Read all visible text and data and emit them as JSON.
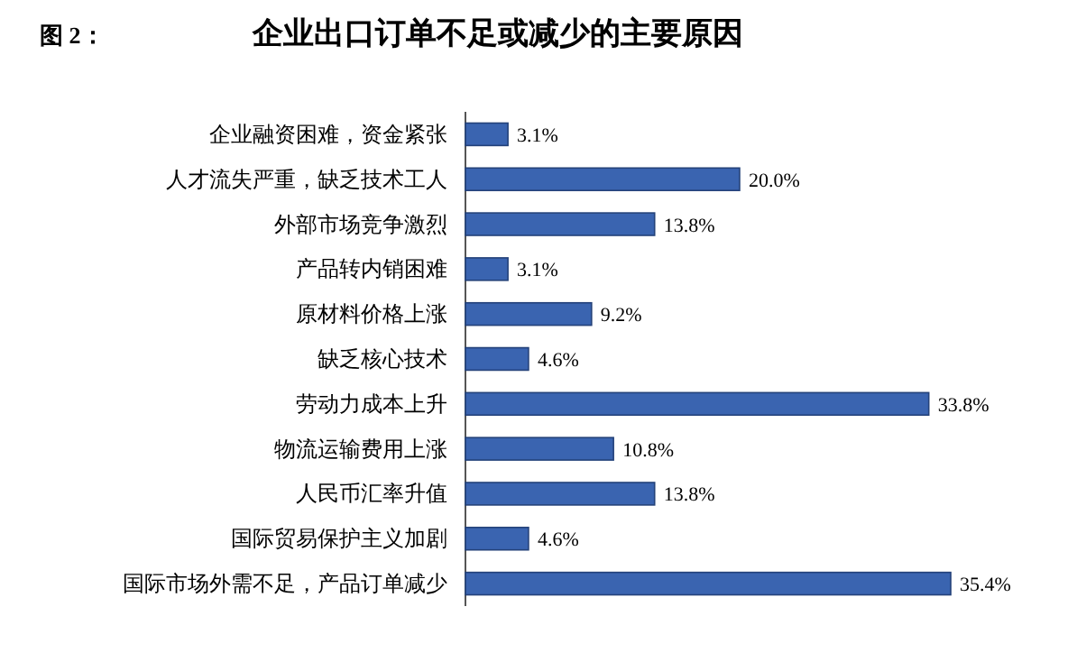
{
  "chart_data": {
    "type": "bar",
    "orientation": "horizontal",
    "title": "企业出口订单不足或减少的主要原因",
    "annotations": [
      "图 2："
    ],
    "categories": [
      "企业融资困难，资金紧张",
      "人才流失严重，缺乏技术工人",
      "外部市场竞争激烈",
      "产品转内销困难",
      "原材料价格上涨",
      "缺乏核心技术",
      "劳动力成本上升",
      "物流运输费用上涨",
      "人民币汇率升值",
      "国际贸易保护主义加剧",
      "国际市场外需不足，产品订单减少"
    ],
    "values": [
      3.1,
      20.0,
      13.8,
      3.1,
      9.2,
      4.6,
      33.8,
      10.8,
      13.8,
      4.6,
      35.4
    ],
    "value_labels": [
      "3.1%",
      "20.0%",
      "13.8%",
      "3.1%",
      "9.2%",
      "4.6%",
      "33.8%",
      "10.8%",
      "13.8%",
      "4.6%",
      "35.4%"
    ],
    "color": "#3a64b0"
  }
}
